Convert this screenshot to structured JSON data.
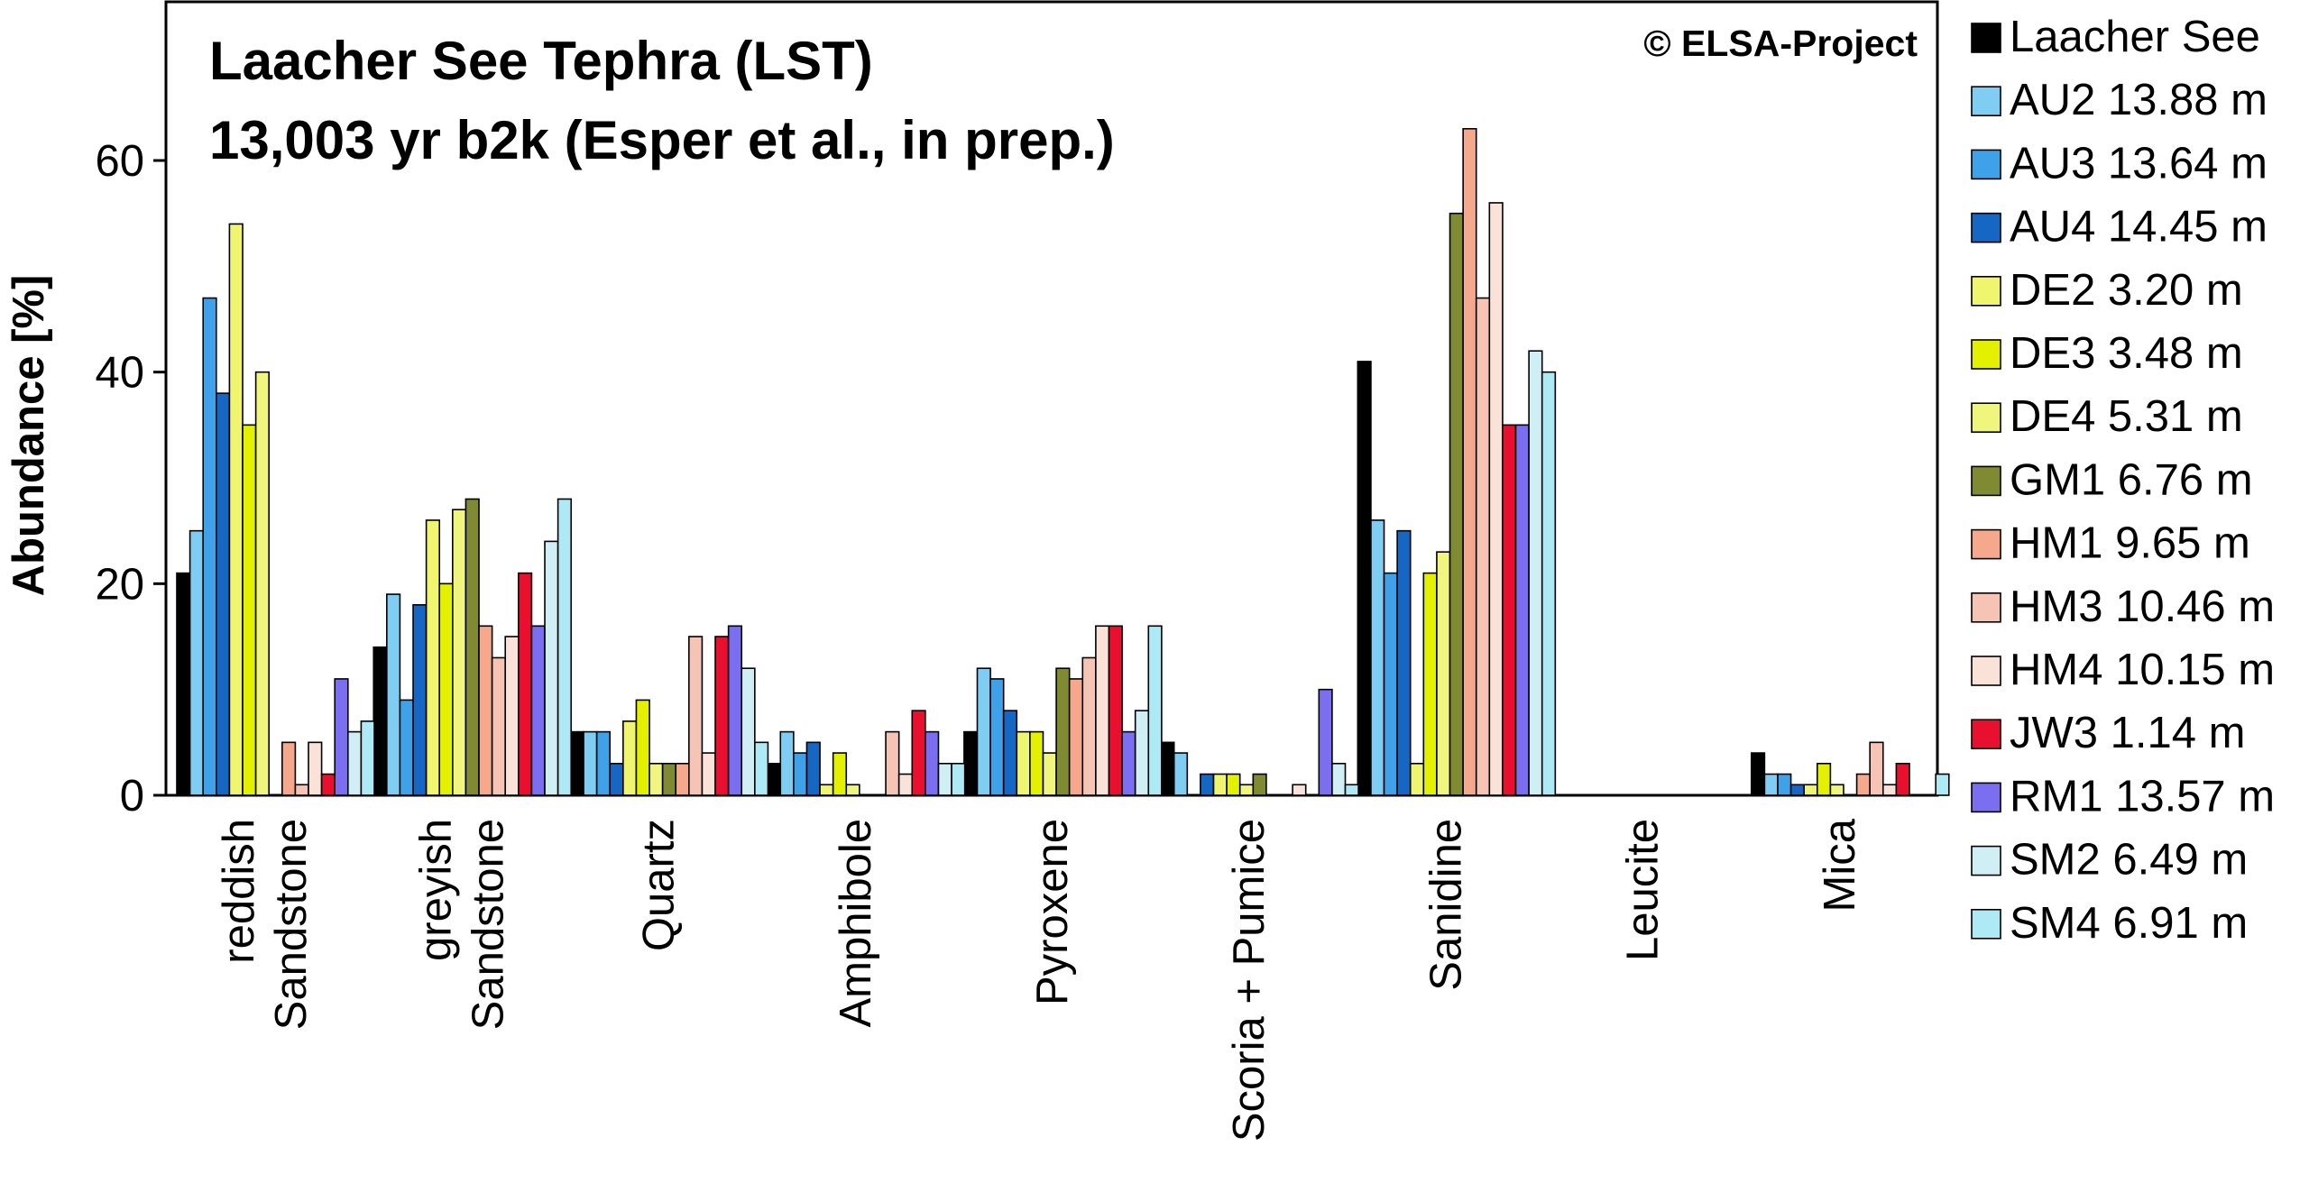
{
  "chart_data": {
    "type": "bar",
    "title": [
      "Laacher See Tephra (LST)",
      "13,003 yr b2k (Esper et al., in prep.)"
    ],
    "annotation": "© ELSA-Project",
    "xlabel": "",
    "ylabel": "Abundance [%]",
    "ylim": [
      0,
      75
    ],
    "yticks": [
      0,
      20,
      40,
      60
    ],
    "grid": false,
    "legend_position": "right",
    "categories": [
      [
        "reddish",
        "Sandstone"
      ],
      [
        "greyish",
        "Sandstone"
      ],
      [
        "Quartz"
      ],
      [
        "Amphibole"
      ],
      [
        "Pyroxene"
      ],
      [
        "Scoria + Pumice"
      ],
      [
        "Sanidine"
      ],
      [
        "Leucite"
      ],
      [
        "Mica"
      ]
    ],
    "series": [
      {
        "name": "Laacher See",
        "color": "#000000",
        "values": [
          21,
          14,
          6,
          3,
          6,
          5,
          41,
          0,
          4
        ]
      },
      {
        "name": "AU2 13.88 m",
        "color": "#7fcdf2",
        "values": [
          25,
          19,
          6,
          6,
          12,
          4,
          26,
          0,
          2
        ]
      },
      {
        "name": "AU3 13.64 m",
        "color": "#3fa2e8",
        "values": [
          47,
          9,
          6,
          4,
          11,
          0,
          21,
          0,
          2
        ]
      },
      {
        "name": "AU4 14.45 m",
        "color": "#1666c4",
        "values": [
          38,
          18,
          3,
          5,
          8,
          2,
          25,
          0,
          1
        ]
      },
      {
        "name": "DE2 3.20 m",
        "color": "#f0f570",
        "values": [
          54,
          26,
          7,
          1,
          6,
          2,
          3,
          0,
          1
        ]
      },
      {
        "name": "DE3 3.48 m",
        "color": "#e3f000",
        "values": [
          35,
          20,
          9,
          4,
          6,
          2,
          21,
          0,
          3
        ]
      },
      {
        "name": "DE4 5.31 m",
        "color": "#eff57d",
        "values": [
          40,
          27,
          3,
          1,
          4,
          1,
          23,
          0,
          1
        ]
      },
      {
        "name": "GM1 6.76 m",
        "color": "#7f8a32",
        "values": [
          0,
          28,
          3,
          0,
          12,
          2,
          55,
          0,
          0
        ]
      },
      {
        "name": "HM1 9.65 m",
        "color": "#f5a88c",
        "values": [
          5,
          16,
          3,
          0,
          11,
          0,
          63,
          0,
          2
        ]
      },
      {
        "name": "HM3 10.46 m",
        "color": "#f6c4b4",
        "values": [
          1,
          13,
          15,
          6,
          13,
          0,
          47,
          0,
          5
        ]
      },
      {
        "name": "HM4 10.15 m",
        "color": "#fbe2d8",
        "values": [
          5,
          15,
          4,
          2,
          16,
          1,
          56,
          0,
          1
        ]
      },
      {
        "name": "JW3 1.14 m",
        "color": "#e8102e",
        "values": [
          2,
          21,
          15,
          8,
          16,
          0,
          35,
          0,
          3
        ]
      },
      {
        "name": "RM1 13.57 m",
        "color": "#7b6ef0",
        "values": [
          11,
          16,
          16,
          6,
          6,
          10,
          35,
          0,
          0
        ]
      },
      {
        "name": "SM2 6.49 m",
        "color": "#cfeff4",
        "values": [
          6,
          24,
          12,
          3,
          8,
          3,
          42,
          0,
          0
        ]
      },
      {
        "name": "SM4 6.91 m",
        "color": "#aeeaf6",
        "values": [
          7,
          28,
          5,
          3,
          16,
          1,
          40,
          0,
          2
        ]
      }
    ]
  }
}
